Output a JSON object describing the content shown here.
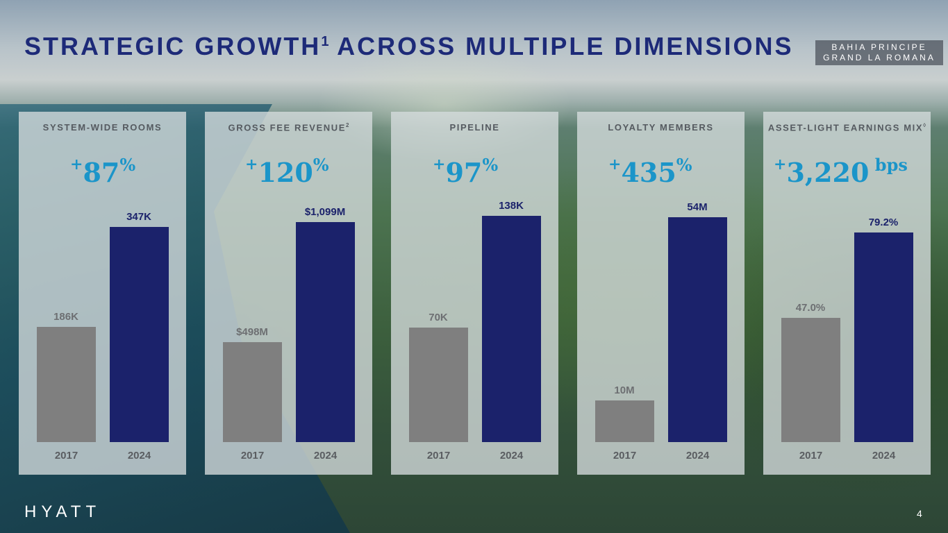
{
  "slide": {
    "title_main": "STRATEGIC GROWTH",
    "title_sup": "1",
    "title_rest": " ACROSS MULTIPLE DIMENSIONS",
    "location_line1": "BAHIA PRINCIPE",
    "location_line2": "GRAND LA ROMANA",
    "logo": "HYATT",
    "page_number": "4"
  },
  "colors": {
    "title": "#1d2a78",
    "growth": "#1b95c9",
    "bar_2017": "#7f7f7f",
    "bar_2024": "#1b226b"
  },
  "chart_data": [
    {
      "type": "bar",
      "title": "SYSTEM-WIDE ROOMS",
      "title_sup": "",
      "growth_sign": "+",
      "growth_value": "87",
      "growth_unit": "%",
      "categories": [
        "2017",
        "2024"
      ],
      "values": [
        186,
        347
      ],
      "value_labels": [
        "186K",
        "347K"
      ],
      "ylim": [
        0,
        410
      ]
    },
    {
      "type": "bar",
      "title": "GROSS FEE REVENUE",
      "title_sup": "2",
      "growth_sign": "+",
      "growth_value": "120",
      "growth_unit": "%",
      "categories": [
        "2017",
        "2024"
      ],
      "values": [
        498,
        1099
      ],
      "value_labels": [
        "$498M",
        "$1,099M"
      ],
      "ylim": [
        0,
        1270
      ]
    },
    {
      "type": "bar",
      "title": "PIPELINE",
      "title_sup": "",
      "growth_sign": "+",
      "growth_value": "97",
      "growth_unit": "%",
      "categories": [
        "2017",
        "2024"
      ],
      "values": [
        70,
        138
      ],
      "value_labels": [
        "70K",
        "138K"
      ],
      "ylim": [
        0,
        155
      ]
    },
    {
      "type": "bar",
      "title": "LOYALTY MEMBERS",
      "title_sup": "",
      "growth_sign": "+",
      "growth_value": "435",
      "growth_unit": "%",
      "categories": [
        "2017",
        "2024"
      ],
      "values": [
        10,
        54
      ],
      "value_labels": [
        "10M",
        "54M"
      ],
      "ylim": [
        0,
        61
      ]
    },
    {
      "type": "bar",
      "title": "ASSET-LIGHT EARNINGS MIX",
      "title_sup": "◊",
      "growth_sign": "+",
      "growth_value": "3,220",
      "growth_unit": " bps",
      "categories": [
        "2017",
        "2024"
      ],
      "values": [
        47.0,
        79.2
      ],
      "value_labels": [
        "47.0%",
        "79.2%"
      ],
      "ylim": [
        0,
        96
      ]
    }
  ]
}
